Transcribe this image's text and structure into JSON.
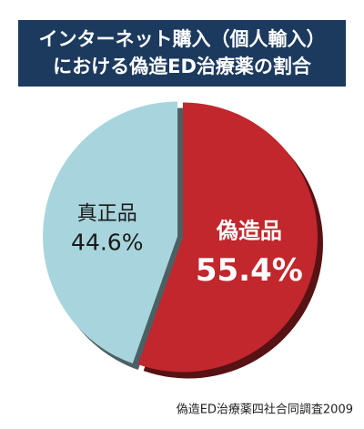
{
  "chart_data": {
    "type": "pie",
    "title": [
      "インターネット購入（個人輸入）",
      "における偽造ED治療薬の割合"
    ],
    "categories": [
      "偽造品",
      "真正品"
    ],
    "values": [
      55.4,
      44.6
    ],
    "value_labels": [
      "55.4%",
      "44.6%"
    ],
    "colors": [
      "#c1272d",
      "#a8d5dd"
    ],
    "source": "偽造ED治療薬四社合同調査2009"
  }
}
